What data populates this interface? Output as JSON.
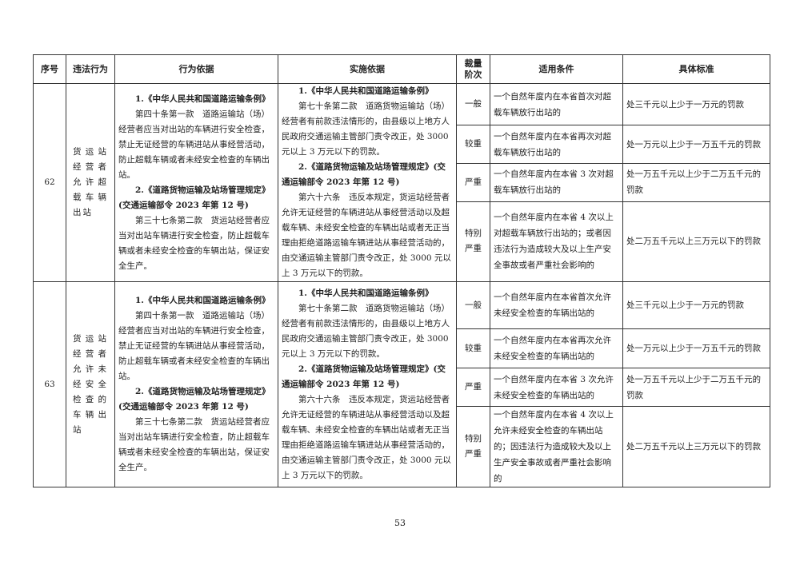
{
  "headers": [
    "序号",
    "违法行为",
    "行为依据",
    "实施依据",
    "裁量阶次",
    "适用条件",
    "具体标准"
  ],
  "rows": [
    {
      "seq": "62",
      "violation": "货运站经营者允许超载车辆出站",
      "basis": {
        "t1": "1.《中华人民共和国道路运输条例》",
        "p1": "第四十条第一款　道路运输站（场）经营者应当对出站的车辆进行安全检查，禁止无证经营的车辆进站从事经营活动，防止超载车辆或者未经安全检查的车辆出站。",
        "t2": "2.《道路货物运输及站场管理规定》(交通运输部令 2023 年第 12 号)",
        "p2": "第三十七条第二款　货运站经营者应当对出站车辆进行安全检查，防止超载车辆或者未经安全检查的车辆出站，保证安全生产。"
      },
      "impl": {
        "t1": "1.《中华人民共和国道路运输条例》",
        "p1": "第七十条第二款　道路货物运输站（场）经营者有前款违法情形的，由县级以上地方人民政府交通运输主管部门责令改正，处 3000 元以上 3 万元以下的罚款。",
        "t2": "2.《道路货物运输及站场管理规定》(交通运输部令 2023 年第 12 号)",
        "p2": "第六十六条　违反本规定，货运站经营者允许无证经营的车辆进站从事经营活动以及超载车辆、未经安全检查的车辆出站或者无正当理由拒绝道路运输车辆进站从事经营活动的，由交通运输主管部门责令改正，处 3000 元以上 3 万元以下的罚款。"
      },
      "levels": [
        {
          "level": "一般",
          "condition": "一个自然年度内在本省首次对超载车辆放行出站的",
          "standard": "处三千元以上少于一万元的罚款"
        },
        {
          "level": "较重",
          "condition": "一个自然年度内在本省再次对超载车辆放行出站的",
          "standard": "处一万元以上少于一万五千元的罚款"
        },
        {
          "level": "严重",
          "condition": "一个自然年度内在本省 3 次对超载车辆放行出站的",
          "standard": "处一万五千元以上少于二万五千元的罚款"
        },
        {
          "level": "特别严重",
          "condition": "一个自然年度内在本省 4 次以上对超载车辆放行出站的；或者因违法行为造成较大及以上生产安全事故或者严重社会影响的",
          "standard": "处二万五千元以上三万元以下的罚款"
        }
      ]
    },
    {
      "seq": "63",
      "violation": "货运站经营者允许未经安全检查的车辆出站",
      "basis": {
        "t1": "1.《中华人民共和国道路运输条例》",
        "p1": "第四十条第一款　道路运输站（场）经营者应当对出站的车辆进行安全检查，禁止无证经营的车辆进站从事经营活动，防止超载车辆或者未经安全检查的车辆出站。",
        "t2": "2.《道路货物运输及站场管理规定》(交通运输部令 2023 年第 12 号)",
        "p2": "第三十七条第二款　货运站经营者应当对出站车辆进行安全检查，防止超载车辆或者未经安全检查的车辆出站，保证安全生产。"
      },
      "impl": {
        "t1": "1.《中华人民共和国道路运输条例》",
        "p1": "第七十条第二款　道路货物运输站（场）经营者有前款违法情形的，由县级以上地方人民政府交通运输主管部门责令改正，处 3000 元以上 3 万元以下的罚款。",
        "t2": "2.《道路货物运输及站场管理规定》(交通运输部令 2023 年第 12 号)",
        "p2": "第六十六条　违反本规定，货运站经营者允许无证经营的车辆进站从事经营活动以及超载车辆、未经安全检查的车辆出站或者无正当理由拒绝道路运输车辆进站从事经营活动的，由交通运输主管部门责令改正，处 3000 元以上 3 万元以下的罚款。"
      },
      "levels": [
        {
          "level": "一般",
          "condition": "一个自然年度内在本省首次允许未经安全检查的车辆出站的",
          "standard": "处三千元以上少于一万元的罚款"
        },
        {
          "level": "较重",
          "condition": "一个自然年度内在本省再次允许未经安全检查的车辆出站的",
          "standard": "处一万元以上少于一万五千元的罚款"
        },
        {
          "level": "严重",
          "condition": "一个自然年度内在本省 3 次允许未经安全检查的车辆出站的",
          "standard": "处一万五千元以上少于二万五千元的罚款"
        },
        {
          "level": "特别严重",
          "condition": "一个自然年度内在本省 4 次以上允许未经安全检查的车辆出站的；因违法行为造成较大及以上生产安全事故或者严重社会影响的",
          "standard": "处二万五千元以上三万元以下的罚款"
        }
      ]
    }
  ],
  "page_number": "53"
}
